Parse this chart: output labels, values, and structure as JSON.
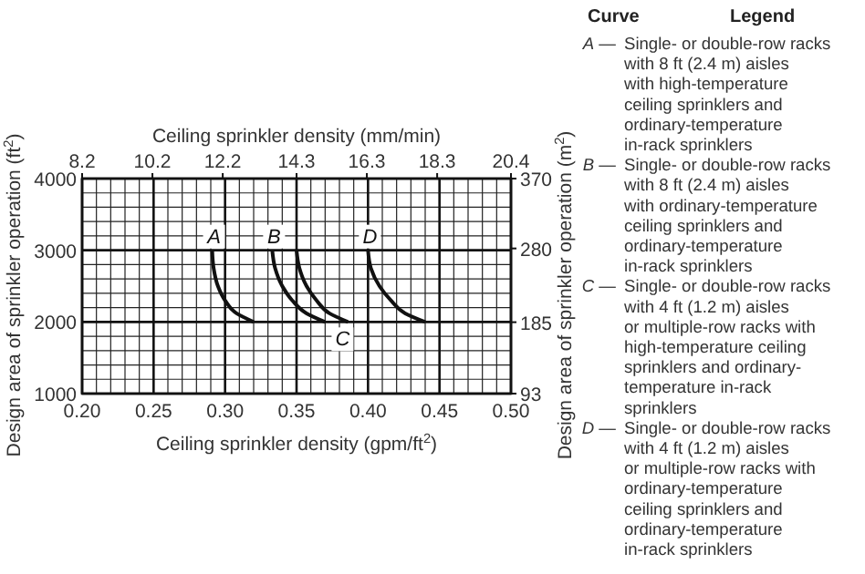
{
  "chart_data": {
    "type": "line",
    "xlabel": "Ceiling sprinkler density (gpm/ft$^{2}$)",
    "ylabel": "Design area of sprinkler operation (ft$^{2}$)",
    "x2label": "Ceiling sprinkler density (mm/min)",
    "y2label": "Design area of sprinkler operation (m$^{2}$)",
    "xlim": [
      0.2,
      0.5
    ],
    "xticks": [
      {
        "value": 0.2,
        "label": "0.20"
      },
      {
        "value": 0.25,
        "label": "0.25"
      },
      {
        "value": 0.3,
        "label": "0.30"
      },
      {
        "value": 0.35,
        "label": "0.35"
      },
      {
        "value": 0.4,
        "label": "0.40"
      },
      {
        "value": 0.45,
        "label": "0.45"
      },
      {
        "value": 0.5,
        "label": "0.50"
      }
    ],
    "ylim": [
      1000,
      4000
    ],
    "yticks": [
      1000,
      2000,
      3000,
      4000
    ],
    "x2lim": [
      8.2,
      20.4
    ],
    "x2ticks": [
      8.2,
      10.2,
      12.2,
      14.3,
      16.3,
      18.3,
      20.4
    ],
    "y2lim": [
      93,
      370
    ],
    "y2ticks": [
      93,
      185,
      280,
      370
    ],
    "grid": true,
    "line_style": "solid",
    "series": [
      {
        "name": "A",
        "color": "#111111",
        "x": [
          0.291,
          0.292,
          0.295,
          0.3,
          0.308,
          0.32
        ],
        "values": [
          3000,
          2750,
          2500,
          2300,
          2120,
          2000
        ]
      },
      {
        "name": "B",
        "color": "#111111",
        "x": [
          0.333,
          0.335,
          0.34,
          0.347,
          0.357,
          0.37
        ],
        "values": [
          3000,
          2750,
          2500,
          2300,
          2120,
          2000
        ]
      },
      {
        "name": "C",
        "color": "#111111",
        "x": [
          0.35,
          0.352,
          0.357,
          0.364,
          0.373,
          0.386
        ],
        "values": [
          3000,
          2750,
          2500,
          2300,
          2120,
          2000
        ]
      },
      {
        "name": "D",
        "color": "#111111",
        "x": [
          0.4,
          0.402,
          0.408,
          0.416,
          0.426,
          0.44
        ],
        "values": [
          3000,
          2750,
          2500,
          2300,
          2120,
          2000
        ]
      }
    ],
    "annotations": [
      "Curve",
      "Legend",
      "A — Single- or double-row racks\nwith 8 ft (2.4 m) aisles\nwith high-temperature\nceiling sprinklers and\nordinary-temperature\nin-rack sprinklers",
      "B — Single- or double-row racks\nwith 8 ft (2.4 m) aisles\nwith ordinary-temperature\nceiling sprinklers and\nordinary-temperature\nin-rack sprinklers",
      "C — Single- or double-row racks\nwith 4 ft (1.2 m) aisles\nor multiple-row racks with\nhigh-temperature ceiling\nsprinklers and ordinary-\ntemperature in-rack\nsprinklers",
      "D — Single- or double-row racks\nwith 4 ft (1.2 m) aisles\nor multiple-row racks with\nordinary-temperature\nceiling sprinklers and\nordinary-temperature\nin-rack sprinklers"
    ]
  }
}
